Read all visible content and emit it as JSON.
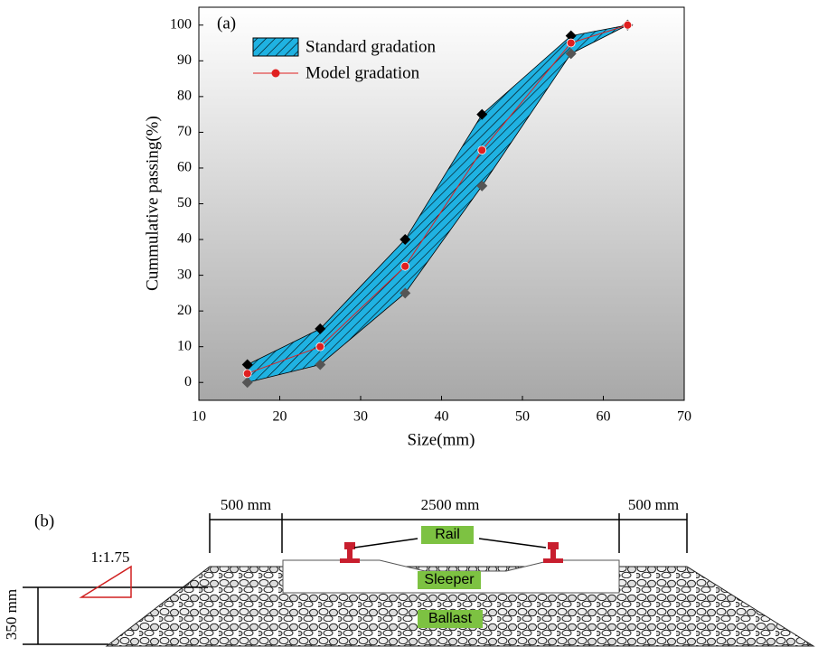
{
  "chart_data": {
    "type": "line",
    "annotation": "(a)",
    "x_label": "Size(mm)",
    "y_label": "Cummulative passing(%)",
    "x": [
      16,
      25,
      35.5,
      45,
      56,
      63
    ],
    "band": {
      "name": "Standard gradation",
      "color": "#1fb2e2",
      "upper": [
        5,
        15,
        40,
        75,
        97,
        100
      ],
      "lower": [
        0,
        5,
        25,
        55,
        92,
        100
      ]
    },
    "series": [
      {
        "name": "Model gradation",
        "color": "#e02020",
        "values": [
          2.5,
          10,
          32.5,
          65,
          95,
          100
        ]
      }
    ],
    "xlim": [
      10,
      70
    ],
    "xticks": [
      10,
      20,
      30,
      40,
      50,
      60,
      70
    ],
    "ylim": [
      -5,
      105
    ],
    "yticks": [
      0,
      10,
      20,
      30,
      40,
      50,
      60,
      70,
      80,
      90,
      100
    ]
  },
  "diagram": {
    "label": "(b)",
    "left_width": "500 mm",
    "middle_width": "2500 mm",
    "right_width": "500 mm",
    "rail": "Rail",
    "sleeper": "Sleeper",
    "ballast": "Ballast",
    "slope": "1:1.75",
    "height": "350 mm"
  }
}
